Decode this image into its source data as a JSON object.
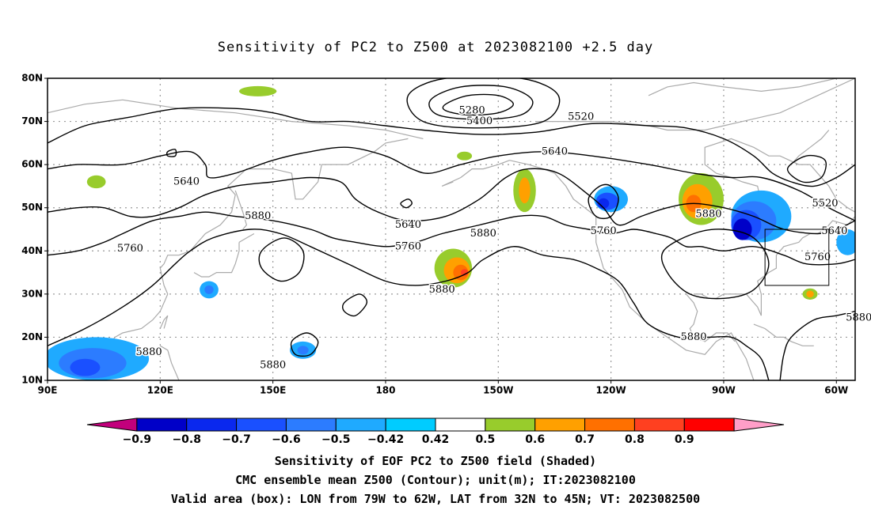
{
  "title": "Sensitivity of PC2 to Z500 at 2023082100 +2.5 day",
  "map": {
    "lon_range": [
      90,
      305
    ],
    "lat_range": [
      10,
      80
    ],
    "lat_ticks": [
      {
        "v": 80,
        "t": "80N"
      },
      {
        "v": 70,
        "t": "70N"
      },
      {
        "v": 60,
        "t": "60N"
      },
      {
        "v": 50,
        "t": "50N"
      },
      {
        "v": 40,
        "t": "40N"
      },
      {
        "v": 30,
        "t": "30N"
      },
      {
        "v": 20,
        "t": "20N"
      },
      {
        "v": 10,
        "t": "10N"
      }
    ],
    "lon_ticks": [
      {
        "v": 90,
        "t": "90E"
      },
      {
        "v": 120,
        "t": "120E"
      },
      {
        "v": 150,
        "t": "150E"
      },
      {
        "v": 180,
        "t": "180"
      },
      {
        "v": 210,
        "t": "150W"
      },
      {
        "v": 240,
        "t": "120W"
      },
      {
        "v": 270,
        "t": "90W"
      },
      {
        "v": 300,
        "t": "60W"
      }
    ],
    "grid": true,
    "box": {
      "lon1": 281,
      "lon2": 298,
      "lat1": 32,
      "lat2": 45
    },
    "contour_labels": [
      {
        "text": "5280",
        "lon": 203,
        "lat": 72.5
      },
      {
        "text": "5400",
        "lon": 205,
        "lat": 70
      },
      {
        "text": "5520",
        "lon": 232,
        "lat": 71
      },
      {
        "text": "5640",
        "lon": 225,
        "lat": 63
      },
      {
        "text": "5640",
        "lon": 127,
        "lat": 56
      },
      {
        "text": "5520",
        "lon": 297,
        "lat": 51
      },
      {
        "text": "5880",
        "lon": 146,
        "lat": 48
      },
      {
        "text": "5640",
        "lon": 186,
        "lat": 46
      },
      {
        "text": "5760",
        "lon": 112,
        "lat": 40.5
      },
      {
        "text": "5760",
        "lon": 186,
        "lat": 41
      },
      {
        "text": "5880",
        "lon": 206,
        "lat": 44
      },
      {
        "text": "5760",
        "lon": 238,
        "lat": 44.5
      },
      {
        "text": "5880",
        "lon": 266,
        "lat": 48.5
      },
      {
        "text": "5640",
        "lon": 299.5,
        "lat": 44.5
      },
      {
        "text": "5760",
        "lon": 295,
        "lat": 38.5
      },
      {
        "text": "5880",
        "lon": 195,
        "lat": 31
      },
      {
        "text": "5880",
        "lon": 306,
        "lat": 24.5
      },
      {
        "text": "5880",
        "lon": 262,
        "lat": 20
      },
      {
        "text": "5880",
        "lon": 117,
        "lat": 16.5
      },
      {
        "text": "5880",
        "lon": 150,
        "lat": 13.5
      }
    ]
  },
  "colorbar": {
    "labels": [
      "−0.9",
      "−0.8",
      "−0.7",
      "−0.6",
      "−0.5",
      "−0.42",
      "0.42",
      "0.5",
      "0.6",
      "0.7",
      "0.8",
      "0.9"
    ],
    "colors": [
      "#c2007c",
      "#0000c8",
      "#0a28ee",
      "#1a50ff",
      "#2c7cff",
      "#1faaff",
      "#00ccff",
      "#ffffff",
      "#98cc2c",
      "#ffa000",
      "#ff7000",
      "#ff4020",
      "#ff0000",
      "#ff9ec8"
    ]
  },
  "caption": {
    "line1": "Sensitivity of EOF PC2 to Z500 field (Shaded)",
    "line2": "CMC ensemble mean Z500 (Contour); unit(m); IT:2023082100",
    "line3": "Valid area (box): LON from 79W to 62W, LAT from 32N to 45N; VT: 2023082500"
  }
}
